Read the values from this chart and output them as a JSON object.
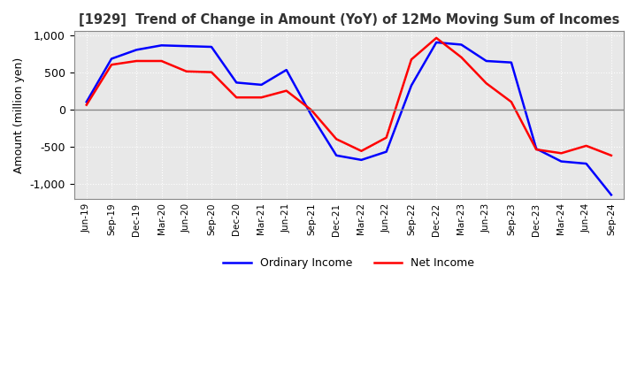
{
  "title": "[1929]  Trend of Change in Amount (YoY) of 12Mo Moving Sum of Incomes",
  "ylabel": "Amount (million yen)",
  "ylim": [
    -1200,
    1050
  ],
  "yticks": [
    -1000,
    -500,
    0,
    500,
    1000
  ],
  "plot_bg_color": "#e8e8e8",
  "fig_bg_color": "#ffffff",
  "grid_color": "#ffffff",
  "x_labels": [
    "Jun-19",
    "Sep-19",
    "Dec-19",
    "Mar-20",
    "Jun-20",
    "Sep-20",
    "Dec-20",
    "Mar-21",
    "Jun-21",
    "Sep-21",
    "Dec-21",
    "Mar-22",
    "Jun-22",
    "Sep-22",
    "Dec-22",
    "Mar-23",
    "Jun-23",
    "Sep-23",
    "Dec-23",
    "Mar-24",
    "Jun-24",
    "Sep-24"
  ],
  "ordinary_income": [
    100,
    680,
    800,
    860,
    850,
    840,
    360,
    330,
    530,
    -80,
    -620,
    -680,
    -570,
    320,
    900,
    870,
    650,
    630,
    -530,
    -700,
    -730,
    -1150
  ],
  "net_income": [
    60,
    600,
    650,
    650,
    510,
    500,
    160,
    160,
    250,
    -10,
    -400,
    -560,
    -380,
    670,
    960,
    700,
    350,
    100,
    -540,
    -590,
    -490,
    -620
  ],
  "ordinary_color": "#0000ff",
  "net_color": "#ff0000",
  "line_width": 1.8
}
